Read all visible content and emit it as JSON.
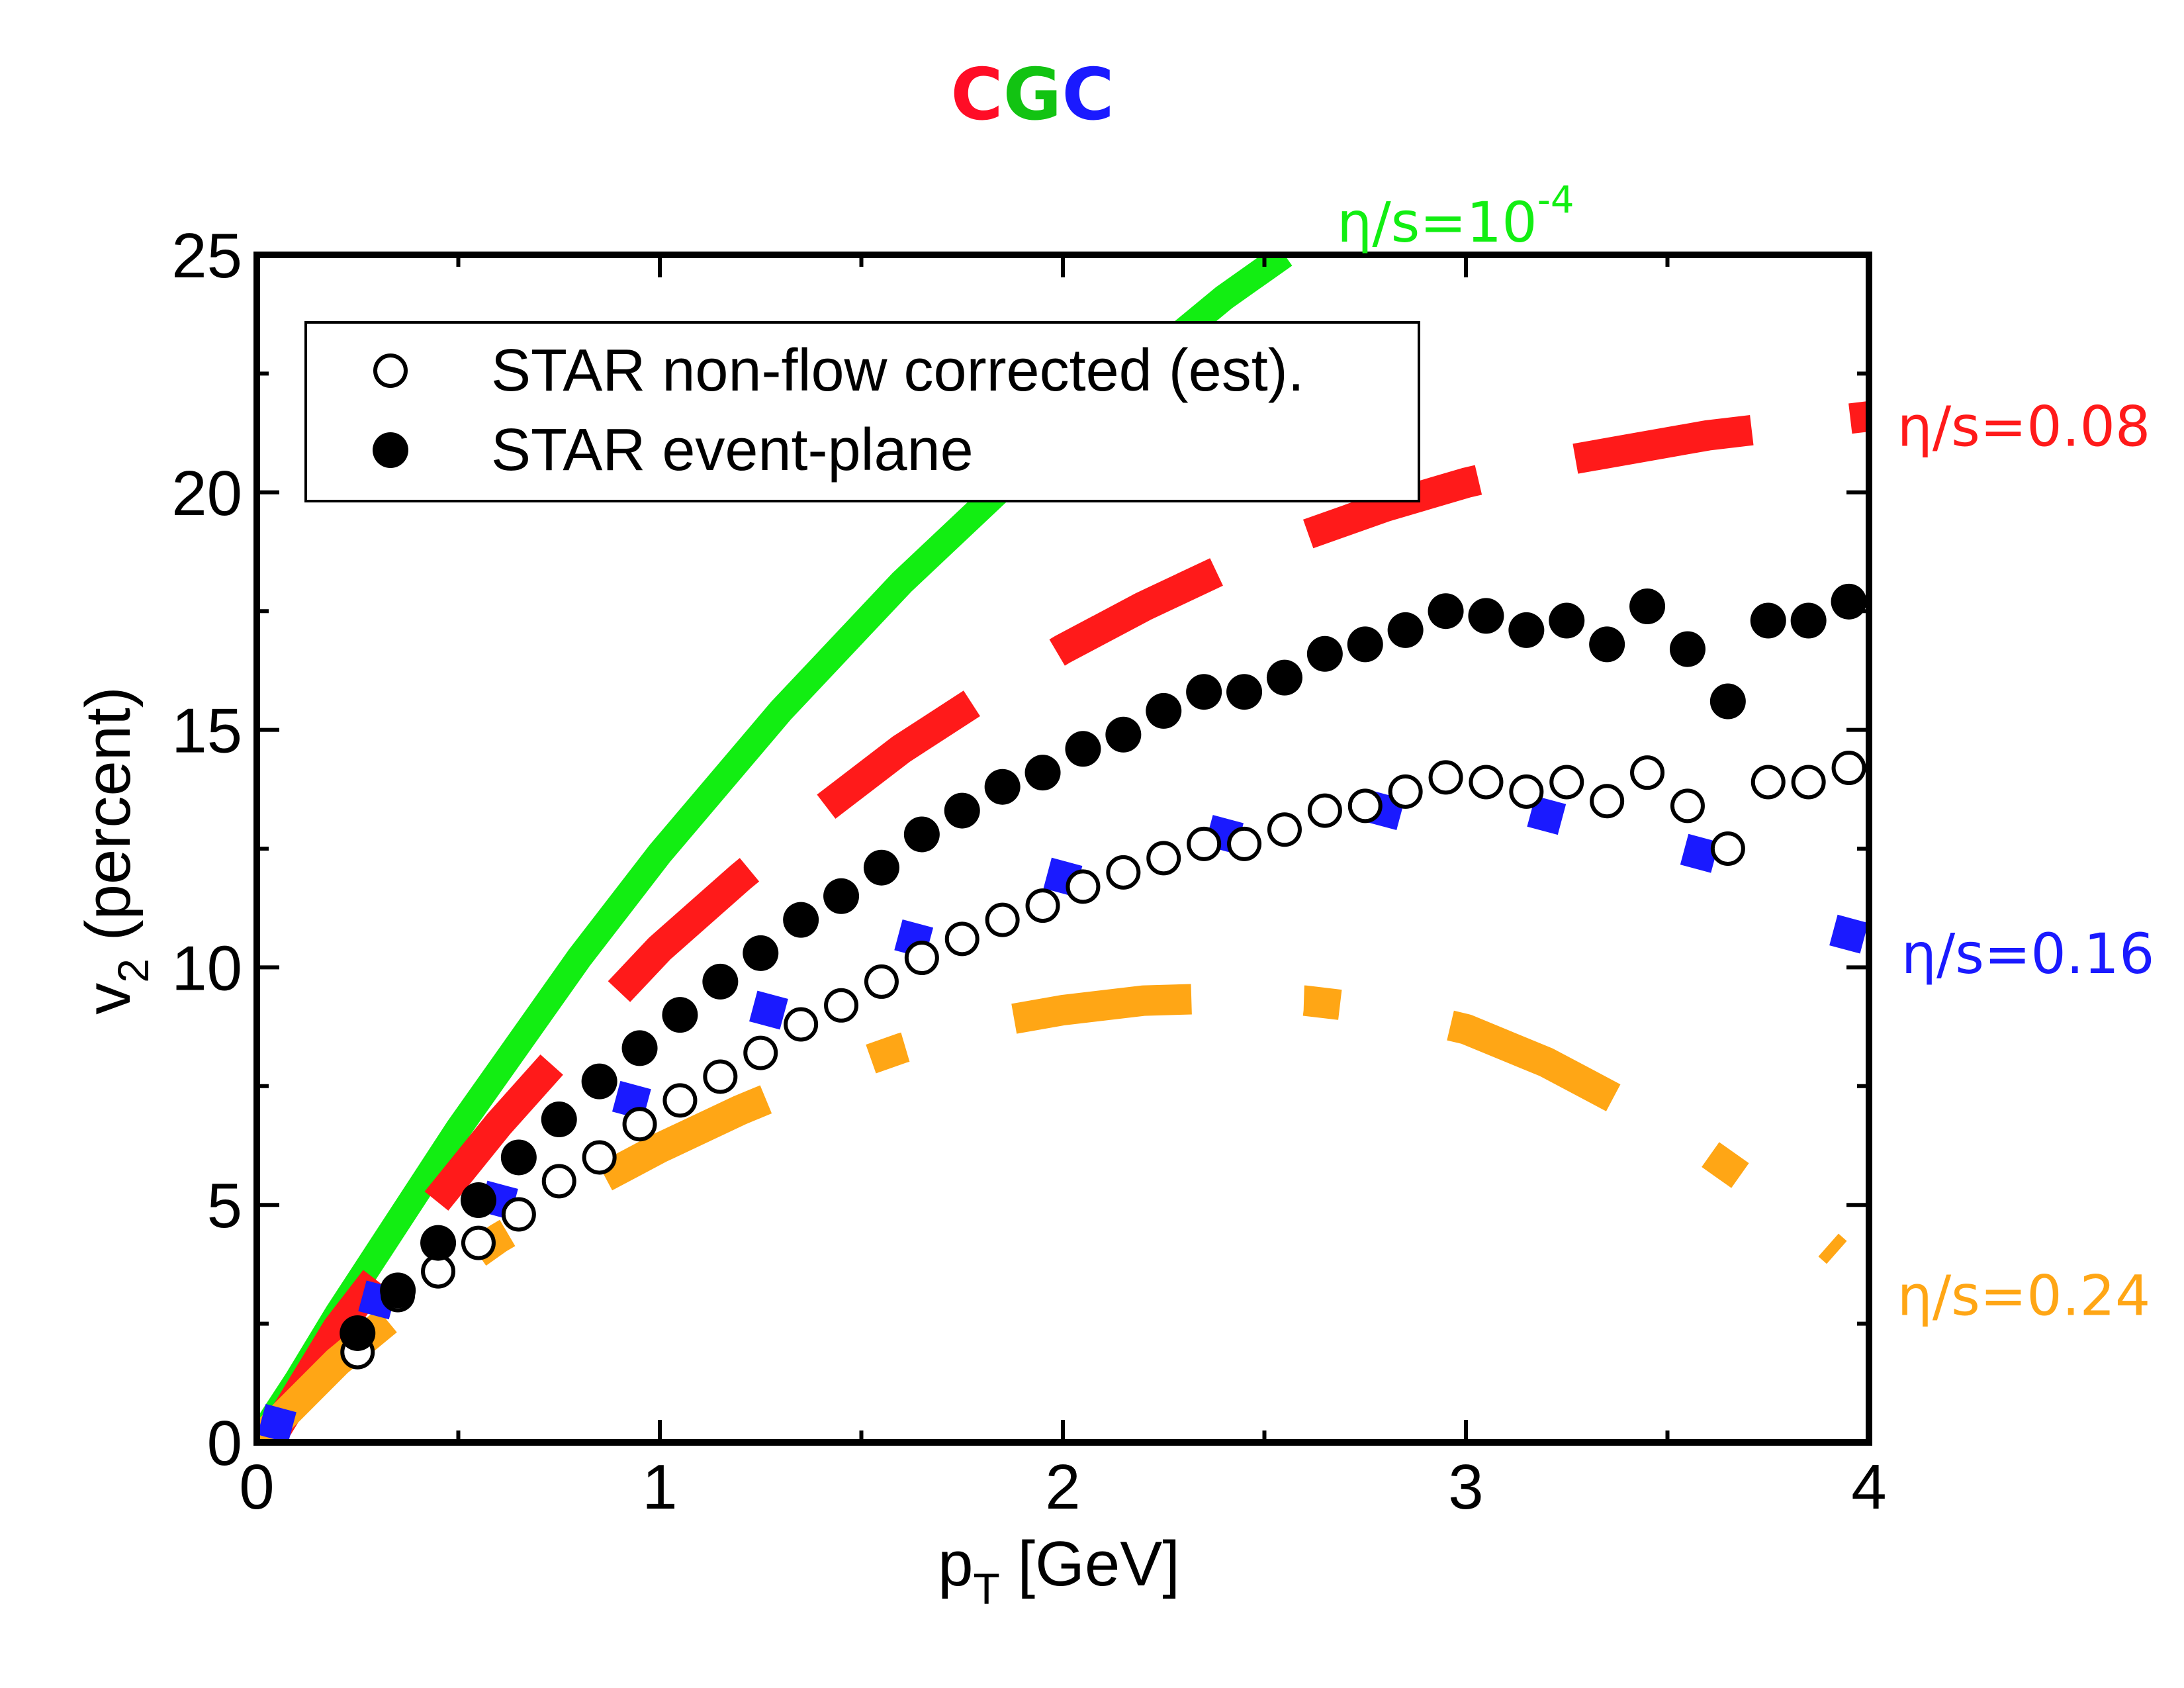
{
  "chart_data": {
    "type": "line",
    "title_letters": [
      {
        "text": "C",
        "color": "#ff0d26"
      },
      {
        "text": "G",
        "color": "#12c312"
      },
      {
        "text": "C",
        "color": "#1a1aff"
      }
    ],
    "xlabel": {
      "main": "p",
      "sub": "T",
      "rest": " [GeV]"
    },
    "ylabel": {
      "main": "v",
      "sub": "2",
      "rest": " (percent)"
    },
    "xlim": [
      0,
      4
    ],
    "ylim": [
      0,
      25
    ],
    "x_ticks": [
      0,
      1,
      2,
      3,
      4
    ],
    "x_tick_labels": [
      "0",
      "1",
      "2",
      "3",
      "4"
    ],
    "y_ticks": [
      0,
      5,
      10,
      15,
      20,
      25
    ],
    "y_tick_labels": [
      "0",
      "5",
      "10",
      "15",
      "20",
      "25"
    ],
    "x_minor_step": 0.5,
    "y_minor_step": 2.5,
    "legend": {
      "position": "top-left",
      "entries": [
        {
          "marker": "open-circle",
          "label": "STAR non-flow corrected (est)."
        },
        {
          "marker": "filled-circle",
          "label": "STAR event-plane"
        }
      ]
    },
    "series": [
      {
        "name": "STAR non-flow corrected (est).",
        "kind": "open-circle",
        "color": "#000000",
        "x": [
          0.25,
          0.35,
          0.45,
          0.55,
          0.65,
          0.75,
          0.85,
          0.95,
          1.05,
          1.15,
          1.25,
          1.35,
          1.45,
          1.55,
          1.65,
          1.75,
          1.85,
          1.95,
          2.05,
          2.15,
          2.25,
          2.35,
          2.45,
          2.55,
          2.65,
          2.75,
          2.85,
          2.95,
          3.05,
          3.15,
          3.25,
          3.35,
          3.45,
          3.55,
          3.65,
          3.75,
          3.85,
          3.95
        ],
        "y": [
          1.9,
          3.1,
          3.6,
          4.2,
          4.8,
          5.5,
          6.0,
          6.7,
          7.2,
          7.7,
          8.2,
          8.8,
          9.2,
          9.7,
          10.2,
          10.6,
          11.0,
          11.3,
          11.7,
          12.0,
          12.3,
          12.6,
          12.6,
          12.9,
          13.3,
          13.4,
          13.7,
          14.0,
          13.9,
          13.7,
          13.9,
          13.5,
          14.1,
          13.4,
          12.5,
          13.9,
          13.9,
          14.2
        ]
      },
      {
        "name": "STAR event-plane",
        "kind": "filled-circle",
        "color": "#000000",
        "x": [
          0.25,
          0.35,
          0.45,
          0.55,
          0.65,
          0.75,
          0.85,
          0.95,
          1.05,
          1.15,
          1.25,
          1.35,
          1.45,
          1.55,
          1.65,
          1.75,
          1.85,
          1.95,
          2.05,
          2.15,
          2.25,
          2.35,
          2.45,
          2.55,
          2.65,
          2.75,
          2.85,
          2.95,
          3.05,
          3.15,
          3.25,
          3.35,
          3.45,
          3.55,
          3.65,
          3.75,
          3.85,
          3.95
        ],
        "y": [
          2.3,
          3.2,
          4.2,
          5.1,
          6.0,
          6.8,
          7.6,
          8.3,
          9.0,
          9.7,
          10.3,
          11.0,
          11.5,
          12.1,
          12.8,
          13.3,
          13.8,
          14.1,
          14.6,
          14.9,
          15.4,
          15.8,
          15.8,
          16.1,
          16.6,
          16.8,
          17.1,
          17.5,
          17.4,
          17.1,
          17.3,
          16.8,
          17.6,
          16.7,
          15.6,
          17.3,
          17.3,
          17.7
        ]
      },
      {
        "name": "η/s=10^-4",
        "kind": "line",
        "style": "solid",
        "color": "#12ee12",
        "x": [
          0.0,
          0.1,
          0.2,
          0.3,
          0.4,
          0.5,
          0.6,
          0.7,
          0.8,
          0.9,
          1.0,
          1.1,
          1.2,
          1.3,
          1.4,
          1.5,
          1.6,
          1.7,
          1.8,
          1.9,
          2.0,
          2.1,
          2.2,
          2.3,
          2.4,
          2.5,
          2.55
        ],
        "y": [
          0.0,
          1.3,
          2.7,
          4.0,
          5.3,
          6.6,
          7.8,
          9.0,
          10.2,
          11.3,
          12.4,
          13.4,
          14.4,
          15.4,
          16.3,
          17.2,
          18.1,
          18.9,
          19.7,
          20.5,
          21.2,
          21.9,
          22.7,
          23.4,
          24.1,
          24.7,
          25.0
        ]
      },
      {
        "name": "η/s=0.08",
        "kind": "line",
        "style": "dashed",
        "color": "#ff1a1a",
        "x": [
          0.05,
          0.2,
          0.4,
          0.6,
          0.8,
          1.0,
          1.2,
          1.4,
          1.6,
          1.8,
          2.0,
          2.2,
          2.4,
          2.6,
          2.8,
          3.0,
          3.2,
          3.4,
          3.6,
          3.8,
          4.0
        ],
        "y": [
          0.3,
          2.4,
          4.6,
          6.7,
          8.6,
          10.4,
          11.9,
          13.3,
          14.6,
          15.7,
          16.7,
          17.6,
          18.4,
          19.1,
          19.7,
          20.2,
          20.6,
          20.9,
          21.2,
          21.4,
          21.6
        ]
      },
      {
        "name": "η/s=0.16",
        "kind": "diamond",
        "color": "#1a1aff",
        "x": [
          0.05,
          0.3,
          0.6,
          0.93,
          1.27,
          1.63,
          2.0,
          2.4,
          2.8,
          3.2,
          3.58,
          3.95
        ],
        "y": [
          0.4,
          3.0,
          5.1,
          7.2,
          9.1,
          10.6,
          11.9,
          12.8,
          13.3,
          13.2,
          12.4,
          10.7
        ]
      },
      {
        "name": "η/s=0.24",
        "kind": "line",
        "style": "dash-dot",
        "color": "#ffa615",
        "x": [
          0.0,
          0.2,
          0.4,
          0.6,
          0.8,
          1.0,
          1.2,
          1.4,
          1.6,
          1.8,
          2.0,
          2.2,
          2.4,
          2.6,
          2.8,
          3.0,
          3.2,
          3.4,
          3.6,
          3.8,
          3.92
        ],
        "y": [
          0.0,
          1.7,
          3.1,
          4.3,
          5.3,
          6.2,
          7.0,
          7.7,
          8.3,
          8.8,
          9.1,
          9.3,
          9.35,
          9.3,
          9.1,
          8.7,
          8.0,
          7.1,
          6.1,
          4.9,
          4.0
        ]
      }
    ],
    "annotations": [
      {
        "name": "eta-s-1e-4",
        "base": "η/s=10",
        "sup": "-4",
        "color": "#12ee12",
        "x": 2.68,
        "y": 25.7
      },
      {
        "name": "eta-s-0.08",
        "base": "η/s=0.08",
        "sup": "",
        "color": "#ff1a1a",
        "x": 4.07,
        "y": 21.4
      },
      {
        "name": "eta-s-0.16",
        "base": "η/s=0.16",
        "sup": "",
        "color": "#1a1aff",
        "x": 4.08,
        "y": 10.3
      },
      {
        "name": "eta-s-0.24",
        "base": "η/s=0.24",
        "sup": "",
        "color": "#ffa615",
        "x": 4.07,
        "y": 3.1
      }
    ]
  }
}
